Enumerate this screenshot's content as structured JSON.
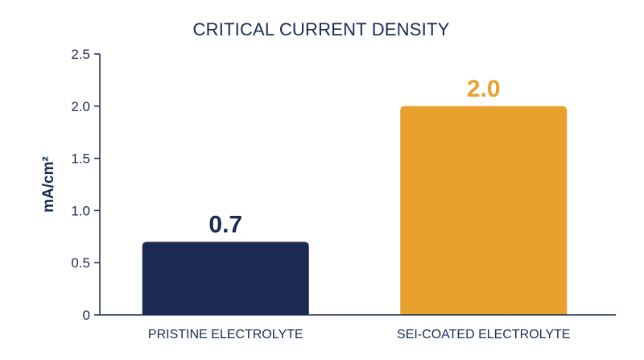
{
  "chart_data": {
    "type": "bar",
    "title": "CRITICAL CURRENT DENSITY",
    "ylabel": "mA/cm²",
    "xlabel": "",
    "ylim": [
      0,
      2.5
    ],
    "yticks": [
      "0",
      "0.5",
      "1.0",
      "1.5",
      "2.0",
      "2.5"
    ],
    "ytick_values": [
      0,
      0.5,
      1.0,
      1.5,
      2.0,
      2.5
    ],
    "categories": [
      "PRISTINE ELECTROLYTE",
      "SEI-COATED ELECTROLYTE"
    ],
    "values": [
      0.7,
      2.0
    ],
    "value_labels": [
      "0.7",
      "2.0"
    ],
    "colors": [
      "#1b2a52",
      "#e8a12d"
    ],
    "grid": false,
    "legend": "none"
  }
}
